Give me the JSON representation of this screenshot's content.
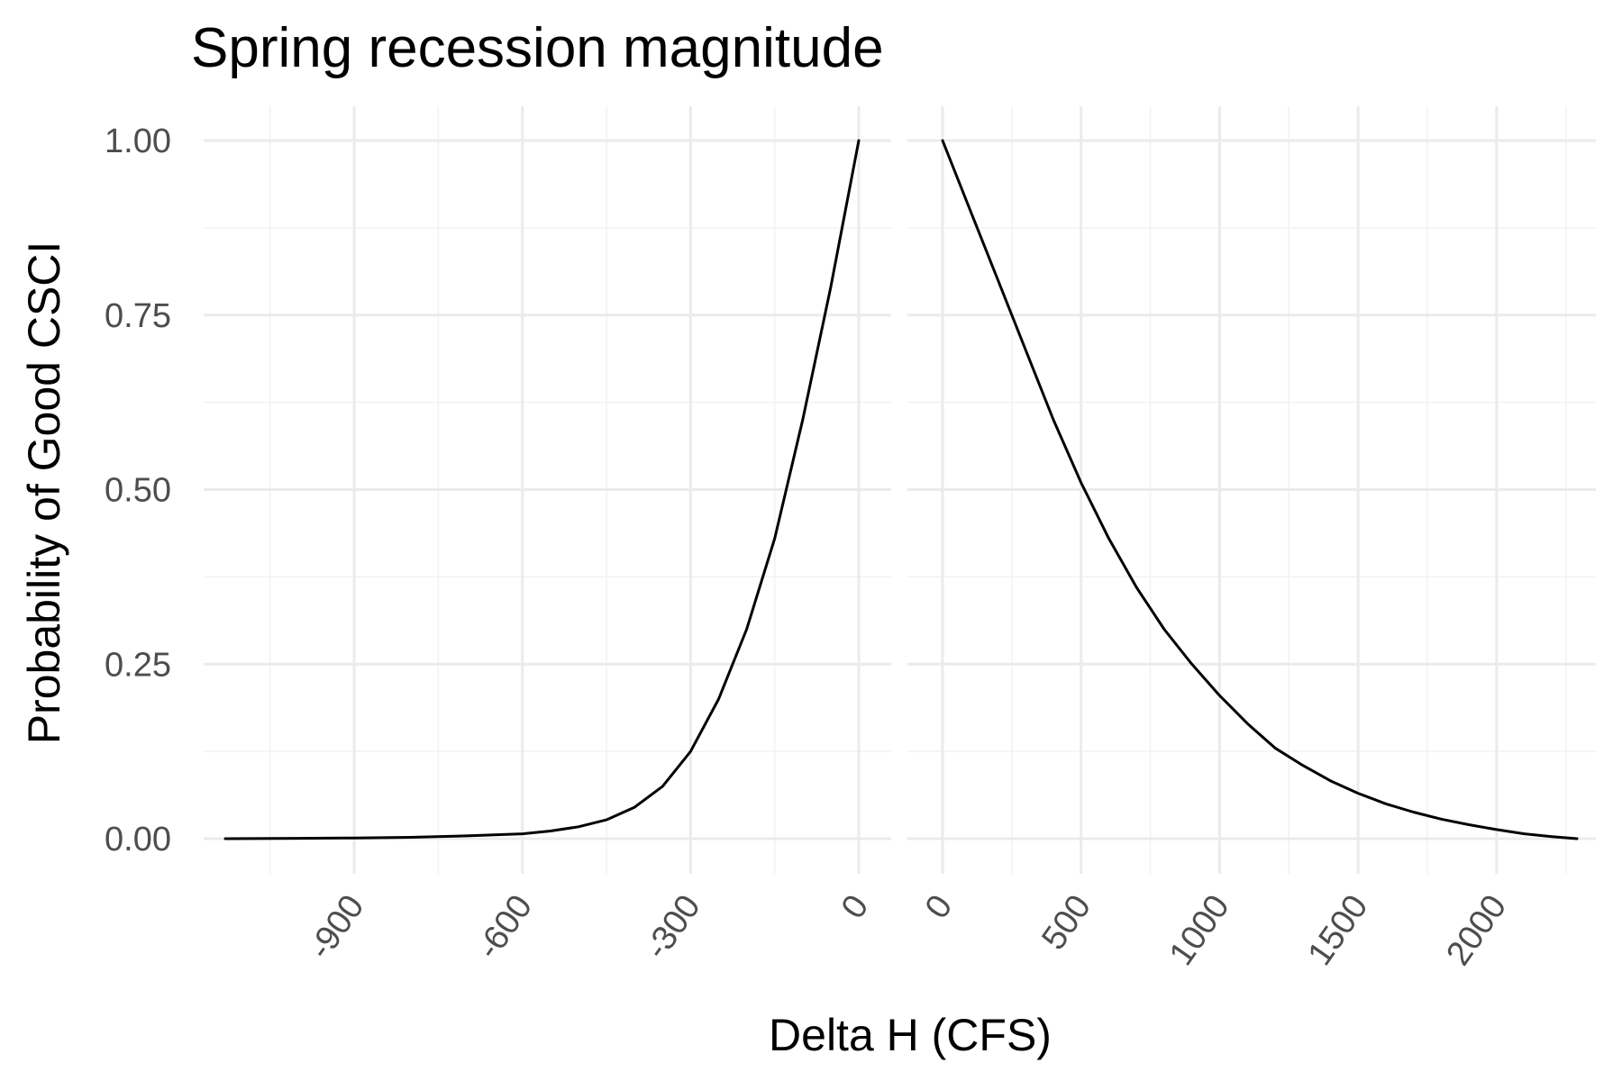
{
  "chart_data": {
    "type": "line",
    "title": "Spring recession magnitude",
    "xlabel": "Delta H (CFS)",
    "ylabel": "Probability of Good CSCI",
    "grid": true,
    "legend": "none",
    "y_ticks": [
      "0.00",
      "0.25",
      "0.50",
      "0.75",
      "1.00"
    ],
    "ylim": [
      0,
      1
    ],
    "panels": [
      {
        "name": "negative",
        "xlim": [
          -1130,
          0
        ],
        "x_ticks": [
          -900,
          -600,
          -300,
          0
        ],
        "x_tick_labels": [
          "-900",
          "-600",
          "-300",
          "0"
        ],
        "x_minor": [
          -1050,
          -750,
          -450,
          -150
        ],
        "points": [
          [
            -1130,
            0.0
          ],
          [
            -1000,
            0.0005
          ],
          [
            -900,
            0.001
          ],
          [
            -800,
            0.002
          ],
          [
            -700,
            0.004
          ],
          [
            -600,
            0.007
          ],
          [
            -550,
            0.011
          ],
          [
            -500,
            0.017
          ],
          [
            -450,
            0.027
          ],
          [
            -400,
            0.045
          ],
          [
            -350,
            0.075
          ],
          [
            -300,
            0.125
          ],
          [
            -250,
            0.2
          ],
          [
            -200,
            0.3
          ],
          [
            -150,
            0.43
          ],
          [
            -100,
            0.6
          ],
          [
            -50,
            0.79
          ],
          [
            0,
            1.0
          ]
        ]
      },
      {
        "name": "positive",
        "xlim": [
          0,
          2290
        ],
        "x_ticks": [
          0,
          500,
          1000,
          1500,
          2000
        ],
        "x_tick_labels": [
          "0",
          "500",
          "1000",
          "1500",
          "2000"
        ],
        "x_minor": [
          250,
          750,
          1250,
          1750,
          2250
        ],
        "points": [
          [
            0,
            1.0
          ],
          [
            100,
            0.9
          ],
          [
            200,
            0.8
          ],
          [
            300,
            0.7
          ],
          [
            400,
            0.6
          ],
          [
            500,
            0.51
          ],
          [
            600,
            0.43
          ],
          [
            700,
            0.36
          ],
          [
            800,
            0.3
          ],
          [
            900,
            0.25
          ],
          [
            1000,
            0.205
          ],
          [
            1100,
            0.165
          ],
          [
            1200,
            0.13
          ],
          [
            1300,
            0.105
          ],
          [
            1400,
            0.083
          ],
          [
            1500,
            0.065
          ],
          [
            1600,
            0.05
          ],
          [
            1700,
            0.038
          ],
          [
            1800,
            0.028
          ],
          [
            1900,
            0.02
          ],
          [
            2000,
            0.013
          ],
          [
            2100,
            0.007
          ],
          [
            2200,
            0.003
          ],
          [
            2290,
            0.0
          ]
        ]
      }
    ]
  }
}
